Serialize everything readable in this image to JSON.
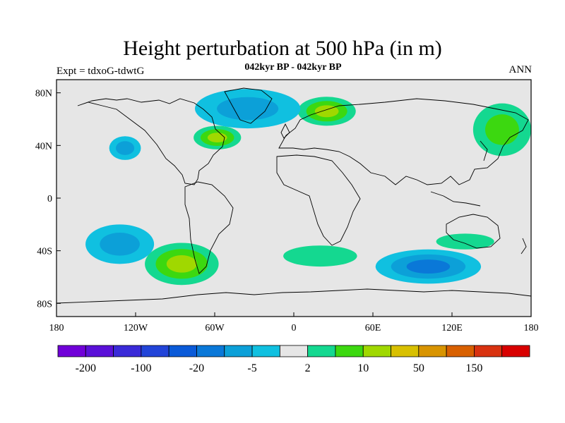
{
  "title": "Height perturbation at 500 hPa (in m)",
  "subtitle": "042kyr BP - 042kyr BP",
  "left_label": "Expt = tdxoG-tdwtG",
  "right_label": "ANN",
  "colors": {
    "background_land": "#e6e6e6",
    "coast": "#000000",
    "palette": [
      "#7000d8",
      "#5a10d8",
      "#3a2ad8",
      "#2244d8",
      "#0a5ad8",
      "#0a78d8",
      "#0ca0d8",
      "#10c0e0",
      "#e6e6e6",
      "#14d890",
      "#3cd810",
      "#a0d800",
      "#d8c000",
      "#d89400",
      "#d86000",
      "#d83210",
      "#d80000"
    ]
  },
  "map": {
    "projection": "cylindrical-equidistant",
    "lon_range": [
      -180,
      180
    ],
    "lat_range": [
      -90,
      90
    ],
    "x_ticks": [
      "180",
      "120W",
      "60W",
      "0",
      "60E",
      "120E",
      "180"
    ],
    "y_ticks": [
      "80N",
      "40N",
      "0",
      "40S",
      "80S"
    ]
  },
  "colorbar": {
    "labels": [
      "-200",
      "-100",
      "-20",
      "-5",
      "2",
      "10",
      "50",
      "150"
    ]
  },
  "anomaly_regions": [
    {
      "name": "north-atlantic-high",
      "lon": -58,
      "lat": 46,
      "rx": 18,
      "ry": 9,
      "levels": [
        9,
        10,
        11
      ]
    },
    {
      "name": "scandinavia-high",
      "lon": 25,
      "lat": 66,
      "rx": 22,
      "ry": 11,
      "levels": [
        9,
        10,
        11
      ]
    },
    {
      "name": "east-asia-high",
      "lon": 158,
      "lat": 52,
      "rx": 22,
      "ry": 20,
      "levels": [
        9,
        10
      ]
    },
    {
      "name": "pacific-south-high",
      "lon": -85,
      "lat": -50,
      "rx": 28,
      "ry": 16,
      "levels": [
        9,
        10,
        11
      ]
    },
    {
      "name": "north-pacific-low",
      "lon": -128,
      "lat": 38,
      "rx": 12,
      "ry": 9,
      "levels": [
        7,
        6
      ]
    },
    {
      "name": "greenland-low",
      "lon": -35,
      "lat": 68,
      "rx": 40,
      "ry": 15,
      "levels": [
        7,
        6
      ]
    },
    {
      "name": "south-pacific-low",
      "lon": -132,
      "lat": -35,
      "rx": 26,
      "ry": 15,
      "levels": [
        7,
        6
      ]
    },
    {
      "name": "south-indian-low",
      "lon": 102,
      "lat": -52,
      "rx": 40,
      "ry": 13,
      "levels": [
        7,
        6,
        5
      ]
    },
    {
      "name": "south-atlantic-high",
      "lon": 20,
      "lat": -44,
      "rx": 28,
      "ry": 8,
      "levels": [
        9
      ]
    },
    {
      "name": "australia-high",
      "lon": 130,
      "lat": -33,
      "rx": 22,
      "ry": 6,
      "levels": [
        9
      ]
    }
  ]
}
